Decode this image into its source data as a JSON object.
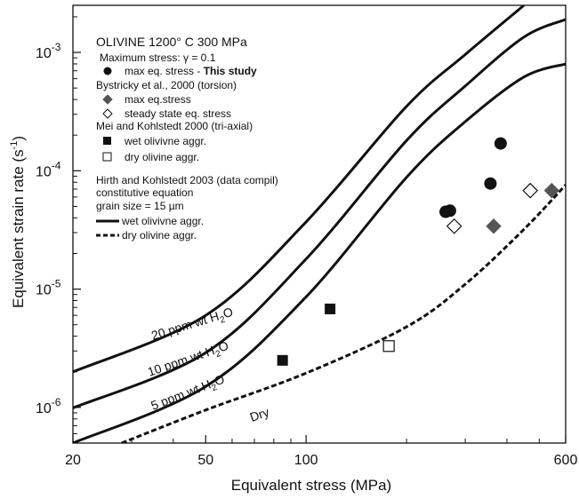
{
  "chart_data": {
    "type": "scatter",
    "title": "",
    "xlabel": "Equivalent stress (MPa)",
    "ylabel": "Equivalent strain rate (s",
    "ylabel_sup": "-1",
    "ylabel_end": ")",
    "x_scale": "log",
    "y_scale": "log",
    "xlim": [
      20,
      600
    ],
    "ylim": [
      5e-07,
      0.0025
    ],
    "x_ticks": [
      {
        "value": 20,
        "label": "20"
      },
      {
        "value": 50,
        "label": "50"
      },
      {
        "value": 100,
        "label": "100"
      },
      {
        "value": 600,
        "label": "600"
      }
    ],
    "y_ticks": [
      {
        "value": 1e-06,
        "base": "10",
        "exp": "-6"
      },
      {
        "value": 1e-05,
        "base": "10",
        "exp": "-5"
      },
      {
        "value": 0.0001,
        "base": "10",
        "exp": "-4"
      },
      {
        "value": 0.001,
        "base": "10",
        "exp": "-3"
      }
    ],
    "legend": {
      "title": "OLIVINE  1200° C   300 MPa",
      "max_stress_label": "Maximum stress: γ  = 0.1",
      "this_study_label": "max eq. stress - ",
      "this_study_bold": "This study",
      "bystricky_label": "Bystricky et al., 2000 (torsion)",
      "bystricky_max_label": "max eq.stress",
      "bystricky_steady_label": "steady state eq. stress",
      "mei_label": "Mei and Kohlstedt 2000 (tri-axial)",
      "mei_wet_label": "wet olivivne aggr.",
      "mei_dry_label": "dry olivine aggr.",
      "hirth_label": "Hirth and Kohlstedt 2003 (data compil)",
      "constitutive_label": "constitutive equation",
      "grain_size_label": "grain size = 15 µm",
      "wet_line_label": "wet  olivivne aggr.",
      "dry_line_label": "dry  olivine aggr."
    },
    "series": [
      {
        "name": "max eq. stress - This study",
        "marker": "filled-circle",
        "points": [
          [
            262,
            4.5e-05
          ],
          [
            270,
            4.6e-05
          ],
          [
            357,
            7.8e-05
          ],
          [
            383,
            0.00017
          ]
        ]
      },
      {
        "name": "max eq.stress",
        "marker": "filled-diamond",
        "points": [
          [
            365,
            3.4e-05
          ],
          [
            545,
            6.8e-05
          ]
        ]
      },
      {
        "name": "steady state eq. stress",
        "marker": "open-diamond",
        "points": [
          [
            278,
            3.4e-05
          ],
          [
            470,
            6.8e-05
          ]
        ]
      },
      {
        "name": "wet olivivne aggr.",
        "marker": "filled-square",
        "points": [
          [
            85,
            2.5e-06
          ],
          [
            118,
            6.8e-06
          ]
        ]
      },
      {
        "name": "dry olivine aggr.",
        "marker": "open-square",
        "points": [
          [
            177,
            3.3e-06
          ]
        ]
      }
    ],
    "curves": [
      {
        "name": "20 ppm wt H2O",
        "style": "solid",
        "label": "20 ppm wt H",
        "label_sub": "2",
        "label_end": "O",
        "points": [
          [
            20,
            2e-06
          ],
          [
            50,
            6e-06
          ],
          [
            100,
            3.7e-05
          ],
          [
            200,
            0.00035
          ],
          [
            300,
            0.00096
          ],
          [
            450,
            0.0025
          ]
        ]
      },
      {
        "name": "10 ppm wt H2O",
        "style": "solid",
        "label": "10 ppm wt H",
        "label_sub": "2",
        "label_end": "O",
        "points": [
          [
            20,
            9.9e-07
          ],
          [
            50,
            2.9e-06
          ],
          [
            100,
            1.8e-05
          ],
          [
            200,
            0.00018
          ],
          [
            300,
            0.00052
          ],
          [
            450,
            0.00135
          ],
          [
            600,
            0.0019
          ]
        ]
      },
      {
        "name": "5 ppm wt H2O",
        "style": "solid",
        "label": "5 ppm wt H",
        "label_sub": "2",
        "label_end": "O",
        "points": [
          [
            20,
            5e-07
          ],
          [
            50,
            1.5e-06
          ],
          [
            100,
            8.6e-06
          ],
          [
            200,
            8.8e-05
          ],
          [
            300,
            0.00026
          ],
          [
            450,
            0.00062
          ],
          [
            600,
            0.0008
          ]
        ]
      },
      {
        "name": "Dry",
        "style": "dashed",
        "label": "Dry",
        "label_sub": "",
        "label_end": "",
        "points": [
          [
            28,
            5e-07
          ],
          [
            50,
            9.5e-07
          ],
          [
            100,
            1.95e-06
          ],
          [
            200,
            4.8e-06
          ],
          [
            300,
            1.1e-05
          ],
          [
            450,
            3.2e-05
          ],
          [
            600,
            7.6e-05
          ]
        ]
      }
    ]
  }
}
